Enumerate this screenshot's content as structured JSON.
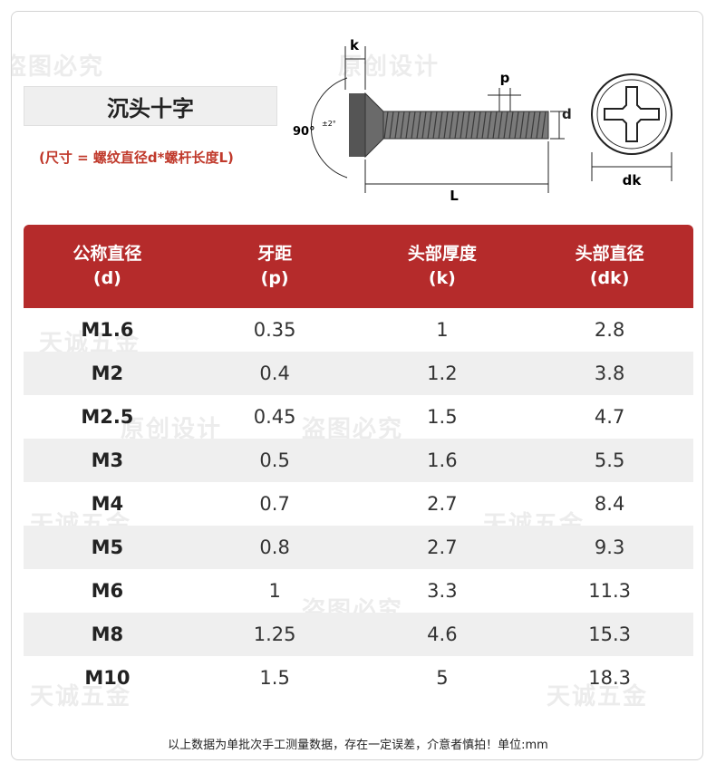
{
  "title": "沉头十字",
  "subtitle": "(尺寸 = 螺纹直径d*螺杆长度L)",
  "diagram": {
    "label_k": "k",
    "label_p": "p",
    "label_d": "d",
    "label_L": "L",
    "label_dk": "dk",
    "angle": "90°",
    "angle_tol": "±2°"
  },
  "watermarks": [
    "盗图必究",
    "原创设计",
    "天诚五金"
  ],
  "table": {
    "headers": [
      {
        "line1": "公称直径",
        "line2": "(d)"
      },
      {
        "line1": "牙距",
        "line2": "(p)"
      },
      {
        "line1": "头部厚度",
        "line2": "(k)"
      },
      {
        "line1": "头部直径",
        "line2": "(dk)"
      }
    ],
    "rows": [
      [
        "M1.6",
        "0.35",
        "1",
        "2.8"
      ],
      [
        "M2",
        "0.4",
        "1.2",
        "3.8"
      ],
      [
        "M2.5",
        "0.45",
        "1.5",
        "4.7"
      ],
      [
        "M3",
        "0.5",
        "1.6",
        "5.5"
      ],
      [
        "M4",
        "0.7",
        "2.7",
        "8.4"
      ],
      [
        "M5",
        "0.8",
        "2.7",
        "9.3"
      ],
      [
        "M6",
        "1",
        "3.3",
        "11.3"
      ],
      [
        "M8",
        "1.25",
        "4.6",
        "15.3"
      ],
      [
        "M10",
        "1.5",
        "5",
        "18.3"
      ]
    ]
  },
  "footer": "以上数据为单批次手工测量数据，存在一定误差，介意者慎拍！单位:mm",
  "colors": {
    "header_bg": "#b52b2b",
    "accent_text": "#c0392b",
    "stripe": "#efefef"
  }
}
